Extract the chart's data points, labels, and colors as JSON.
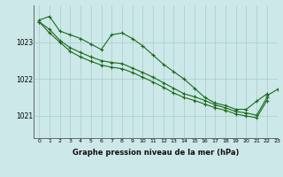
{
  "title": "Graphe pression niveau de la mer (hPa)",
  "bg_color": "#cce8e8",
  "grid_color": "#aacccc",
  "line_color": "#1a6b1a",
  "xlim": [
    -0.5,
    23
  ],
  "ylim": [
    1020.4,
    1024.0
  ],
  "yticks": [
    1021,
    1022,
    1023
  ],
  "xtick_labels": [
    "0",
    "1",
    "2",
    "3",
    "4",
    "5",
    "6",
    "7",
    "8",
    "9",
    "10",
    "11",
    "12",
    "13",
    "14",
    "15",
    "16",
    "17",
    "18",
    "19",
    "20",
    "21",
    "22",
    "23"
  ],
  "series": [
    [
      1023.6,
      1023.7,
      1023.3,
      1023.2,
      1023.1,
      1022.95,
      1022.8,
      1023.2,
      1023.25,
      1023.1,
      1022.9,
      1022.65,
      1022.4,
      1022.2,
      1022.0,
      1021.75,
      1021.5,
      1021.35,
      1021.28,
      1021.18,
      1021.18,
      1021.4,
      1021.6,
      null
    ],
    [
      1023.55,
      1023.35,
      1023.05,
      1022.85,
      1022.72,
      1022.6,
      1022.5,
      1022.45,
      1022.42,
      1022.3,
      1022.18,
      1022.05,
      1021.9,
      1021.75,
      1021.6,
      1021.52,
      1021.42,
      1021.3,
      1021.22,
      1021.12,
      1021.08,
      1021.02,
      1021.5,
      null
    ],
    [
      1023.55,
      1023.25,
      1023.0,
      1022.75,
      1022.6,
      1022.48,
      1022.38,
      1022.32,
      1022.28,
      1022.18,
      1022.05,
      1021.92,
      1021.78,
      1021.62,
      1021.5,
      1021.42,
      1021.32,
      1021.22,
      1021.15,
      1021.05,
      1021.0,
      1020.95,
      1021.42,
      null
    ],
    [
      null,
      null,
      null,
      null,
      null,
      null,
      null,
      null,
      null,
      null,
      null,
      null,
      null,
      null,
      null,
      null,
      null,
      null,
      null,
      null,
      null,
      null,
      1021.55,
      1021.72
    ]
  ]
}
